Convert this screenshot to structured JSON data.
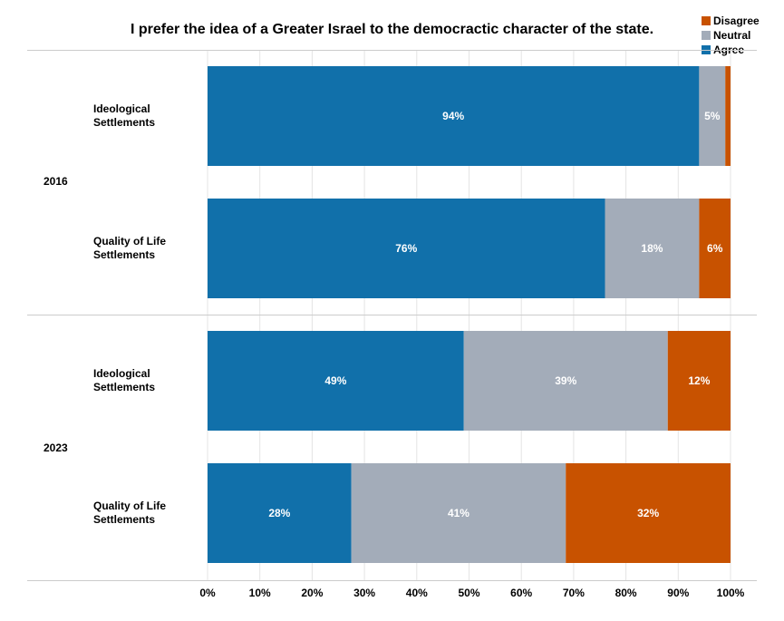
{
  "colors": {
    "Agree": "#1170aa",
    "Neutral": "#a3acb9",
    "Disagree": "#c85200",
    "grid": "#e4e4e4",
    "divider": "#cccccc"
  },
  "chart_data": {
    "type": "bar",
    "orientation": "horizontal",
    "stacked": true,
    "title": "I prefer the idea of a Greater Israel to the democractic character of the state.",
    "legend": {
      "placement": "top-right",
      "entries": [
        "Disagree",
        "Neutral",
        "Agree"
      ]
    },
    "groups": [
      {
        "name": "2016",
        "categories": [
          {
            "label": "Ideological Settlements",
            "segments": [
              {
                "series": "Agree",
                "value": 94,
                "label": "94%"
              },
              {
                "series": "Neutral",
                "value": 5,
                "label": "5%"
              },
              {
                "series": "Disagree",
                "value": 1,
                "label": ""
              }
            ]
          },
          {
            "label": "Quality of Life Settlements",
            "segments": [
              {
                "series": "Agree",
                "value": 76,
                "label": "76%"
              },
              {
                "series": "Neutral",
                "value": 18,
                "label": "18%"
              },
              {
                "series": "Disagree",
                "value": 6,
                "label": "6%"
              }
            ]
          }
        ]
      },
      {
        "name": "2023",
        "categories": [
          {
            "label": "Ideological Settlements",
            "segments": [
              {
                "series": "Agree",
                "value": 49,
                "label": "49%"
              },
              {
                "series": "Neutral",
                "value": 39,
                "label": "39%"
              },
              {
                "series": "Disagree",
                "value": 12,
                "label": "12%"
              }
            ]
          },
          {
            "label": "Quality of Life Settlements",
            "segments": [
              {
                "series": "Agree",
                "value": 27.5,
                "label": "28%"
              },
              {
                "series": "Neutral",
                "value": 41,
                "label": "41%"
              },
              {
                "series": "Disagree",
                "value": 31.5,
                "label": "32%"
              }
            ]
          }
        ]
      }
    ],
    "xaxis": {
      "range": [
        0,
        100
      ],
      "ticks": [
        "0%",
        "10%",
        "20%",
        "30%",
        "40%",
        "50%",
        "60%",
        "70%",
        "80%",
        "90%",
        "100%"
      ]
    },
    "grid": true
  }
}
